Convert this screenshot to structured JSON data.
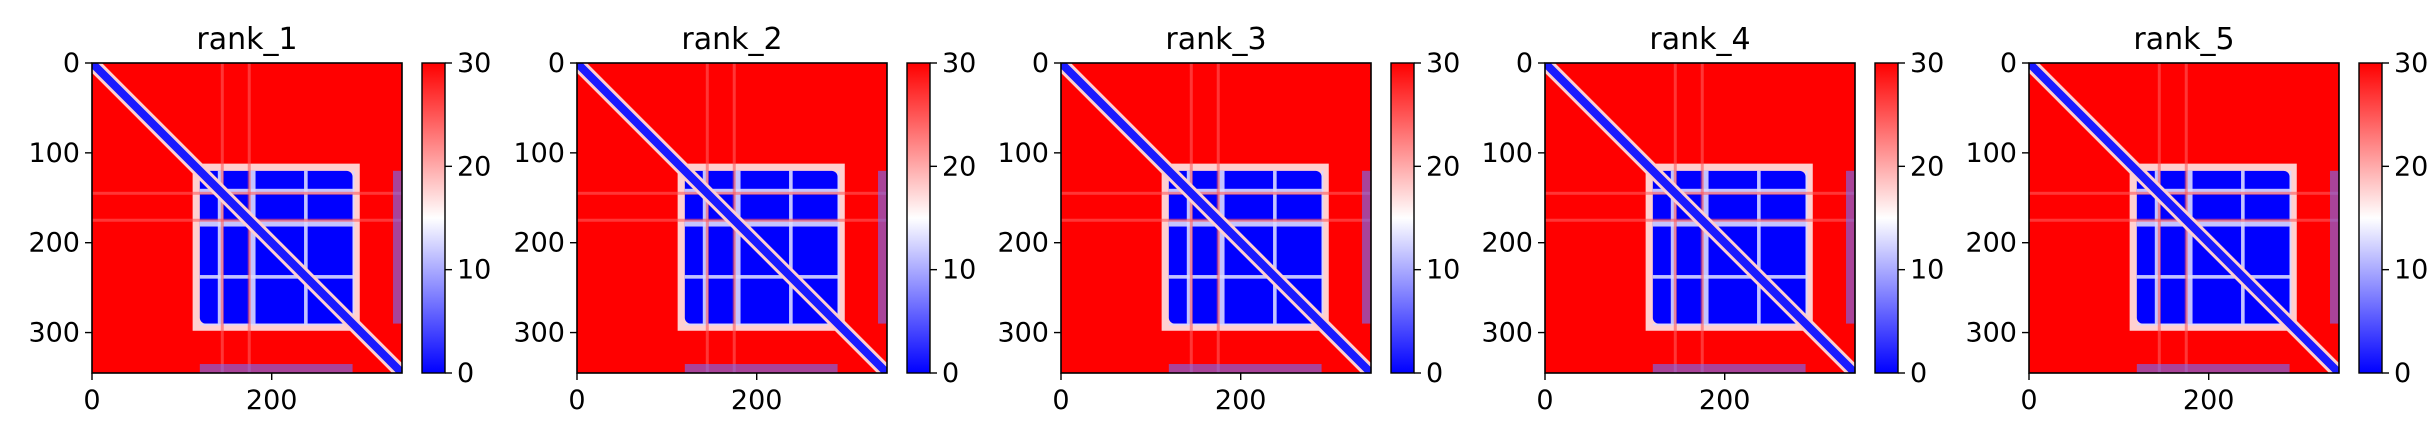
{
  "chart_data": [
    {
      "type": "heatmap",
      "title": "rank_1",
      "xlim": [
        0,
        345
      ],
      "ylim": [
        345,
        0
      ],
      "x_ticks": [
        0,
        200
      ],
      "y_ticks": [
        0,
        100,
        200,
        300
      ],
      "colorbar": {
        "min": 0,
        "max": 30,
        "ticks": [
          0,
          10,
          20,
          30
        ],
        "colormap": "bwr"
      },
      "domain_blocks": [
        [
          120,
          175
        ],
        [
          180,
          290
        ]
      ],
      "off_diagonal_regions": "mostly >= 30 (red); regions between residues ~120-290 low (blue)"
    },
    {
      "type": "heatmap",
      "title": "rank_2",
      "xlim": [
        0,
        345
      ],
      "ylim": [
        345,
        0
      ],
      "x_ticks": [
        0,
        200
      ],
      "y_ticks": [
        0,
        100,
        200,
        300
      ],
      "colorbar": {
        "min": 0,
        "max": 30,
        "ticks": [
          0,
          10,
          20,
          30
        ],
        "colormap": "bwr"
      },
      "domain_blocks": [
        [
          120,
          175
        ],
        [
          180,
          290
        ]
      ],
      "off_diagonal_regions": "mostly >= 30 (red); regions between residues ~120-290 low (blue)"
    },
    {
      "type": "heatmap",
      "title": "rank_3",
      "xlim": [
        0,
        345
      ],
      "ylim": [
        345,
        0
      ],
      "x_ticks": [
        0,
        200
      ],
      "y_ticks": [
        0,
        100,
        200,
        300
      ],
      "colorbar": {
        "min": 0,
        "max": 30,
        "ticks": [
          0,
          10,
          20,
          30
        ],
        "colormap": "bwr"
      },
      "domain_blocks": [
        [
          120,
          175
        ],
        [
          180,
          290
        ]
      ],
      "off_diagonal_regions": "mostly >= 30 (red); regions between residues ~120-290 low (blue)"
    },
    {
      "type": "heatmap",
      "title": "rank_4",
      "xlim": [
        0,
        345
      ],
      "ylim": [
        345,
        0
      ],
      "x_ticks": [
        0,
        200
      ],
      "y_ticks": [
        0,
        100,
        200,
        300
      ],
      "colorbar": {
        "min": 0,
        "max": 30,
        "ticks": [
          0,
          10,
          20,
          30
        ],
        "colormap": "bwr"
      },
      "domain_blocks": [
        [
          120,
          175
        ],
        [
          180,
          290
        ]
      ],
      "off_diagonal_regions": "mostly >= 30 (red); regions between residues ~120-290 low (blue)"
    },
    {
      "type": "heatmap",
      "title": "rank_5",
      "xlim": [
        0,
        345
      ],
      "ylim": [
        345,
        0
      ],
      "x_ticks": [
        0,
        200
      ],
      "y_ticks": [
        0,
        100,
        200,
        300
      ],
      "colorbar": {
        "min": 0,
        "max": 30,
        "ticks": [
          0,
          10,
          20,
          30
        ],
        "colormap": "bwr"
      },
      "domain_blocks": [
        [
          120,
          175
        ],
        [
          180,
          290
        ]
      ],
      "off_diagonal_regions": "mostly >= 30 (red); regions between residues ~120-290 low (blue)"
    }
  ],
  "colors": {
    "high": "#ff0000",
    "mid": "#ffffff",
    "low": "#0000ff",
    "axis": "#000000"
  }
}
